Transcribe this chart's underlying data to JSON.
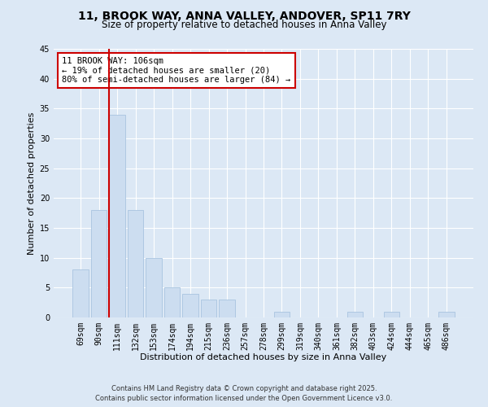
{
  "title": "11, BROOK WAY, ANNA VALLEY, ANDOVER, SP11 7RY",
  "subtitle": "Size of property relative to detached houses in Anna Valley",
  "xlabel": "Distribution of detached houses by size in Anna Valley",
  "ylabel": "Number of detached properties",
  "bar_labels": [
    "69sqm",
    "90sqm",
    "111sqm",
    "132sqm",
    "153sqm",
    "174sqm",
    "194sqm",
    "215sqm",
    "236sqm",
    "257sqm",
    "278sqm",
    "299sqm",
    "319sqm",
    "340sqm",
    "361sqm",
    "382sqm",
    "403sqm",
    "424sqm",
    "444sqm",
    "465sqm",
    "486sqm"
  ],
  "bar_values": [
    8,
    18,
    34,
    18,
    10,
    5,
    4,
    3,
    3,
    0,
    0,
    1,
    0,
    0,
    0,
    1,
    0,
    1,
    0,
    0,
    1
  ],
  "bar_color": "#ccddf0",
  "bar_edge_color": "#a8c4e0",
  "ylim": [
    0,
    45
  ],
  "yticks": [
    0,
    5,
    10,
    15,
    20,
    25,
    30,
    35,
    40,
    45
  ],
  "vline_color": "#cc0000",
  "annotation_title": "11 BROOK WAY: 106sqm",
  "annotation_line1": "← 19% of detached houses are smaller (20)",
  "annotation_line2": "80% of semi-detached houses are larger (84) →",
  "annotation_box_color": "#ffffff",
  "annotation_box_edge": "#cc0000",
  "footer1": "Contains HM Land Registry data © Crown copyright and database right 2025.",
  "footer2": "Contains public sector information licensed under the Open Government Licence v3.0.",
  "bg_color": "#dce8f5",
  "plot_bg_color": "#dce8f5",
  "grid_color": "#ffffff",
  "title_fontsize": 10,
  "subtitle_fontsize": 8.5,
  "axis_label_fontsize": 8,
  "tick_fontsize": 7,
  "annotation_fontsize": 7.5,
  "footer_fontsize": 6
}
